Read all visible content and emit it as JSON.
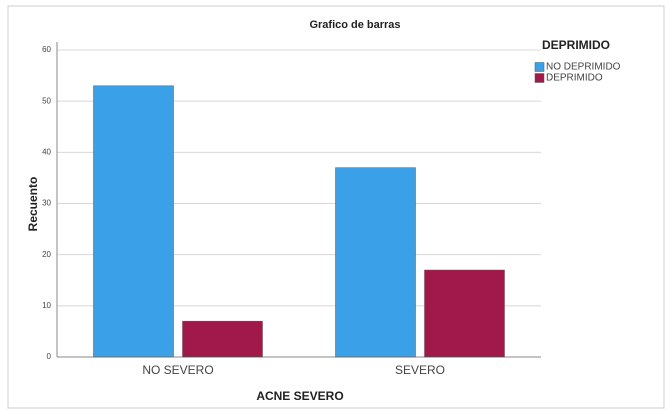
{
  "chart_data": {
    "type": "bar",
    "title": "Grafico de barras",
    "x_label": "ACNE SEVERO",
    "y_label": "Recuento",
    "legend_title": "DEPRIMIDO",
    "categories": [
      "NO SEVERO",
      "SEVERO"
    ],
    "series": [
      {
        "name": "NO DEPRIMIDO",
        "color": "#3aa1e8",
        "values": [
          53,
          37
        ]
      },
      {
        "name": "DEPRIMIDO",
        "color": "#a1184a",
        "values": [
          7,
          17
        ]
      }
    ],
    "ylim": [
      0,
      60
    ],
    "yticks": [
      0,
      10,
      20,
      30,
      40,
      50,
      60
    ],
    "grid": true,
    "legend": "top-right"
  }
}
